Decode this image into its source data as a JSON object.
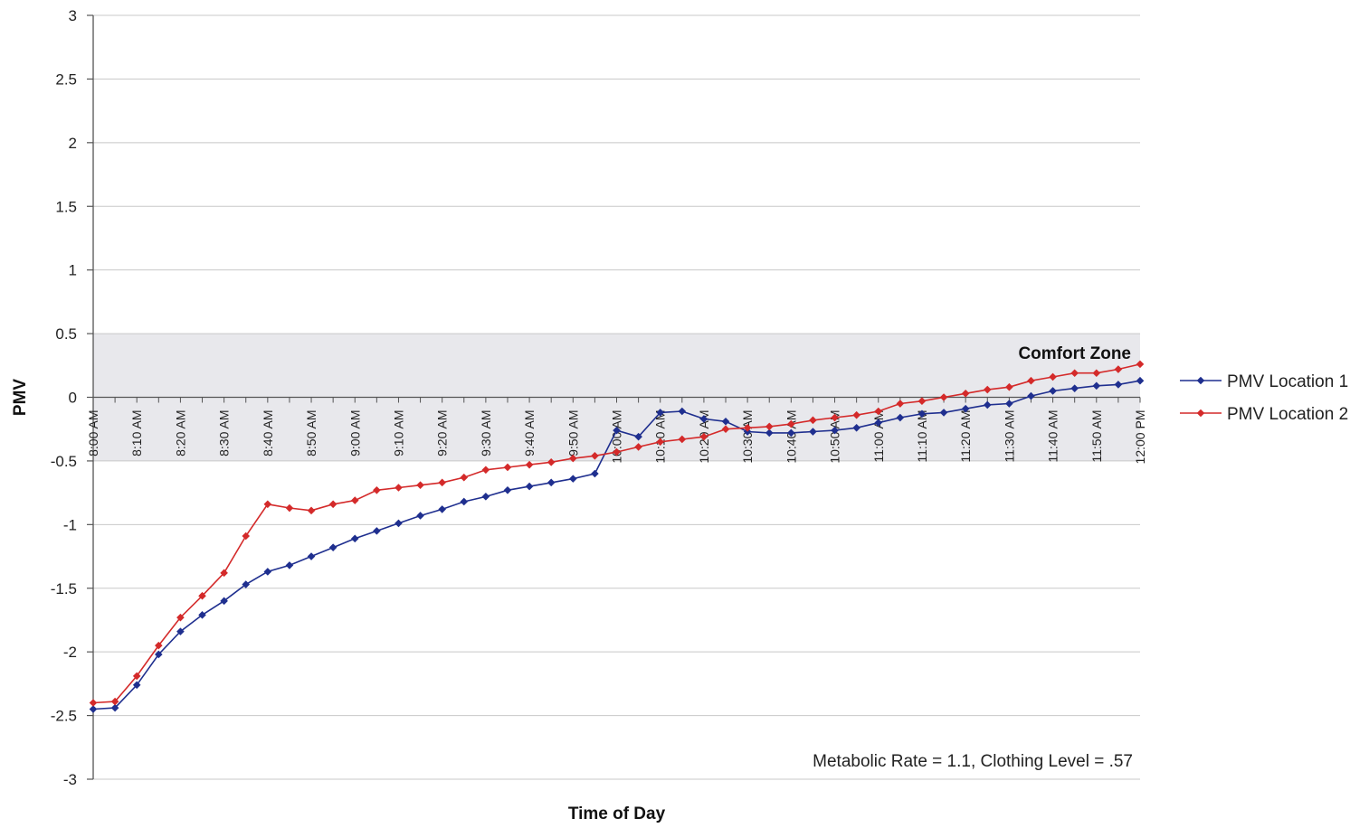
{
  "chart_data": {
    "type": "line",
    "title": "",
    "xlabel": "Time of Day",
    "ylabel": "PMV",
    "ylim": [
      -3,
      3
    ],
    "yticks": [
      "3",
      "2.5",
      "2",
      "1.5",
      "1",
      "0.5",
      "0",
      "-0.5",
      "-1",
      "-1.5",
      "-2",
      "-2.5",
      "-3"
    ],
    "x_tick_labels": [
      "8:00 AM",
      "8:10 AM",
      "8:20 AM",
      "8:30 AM",
      "8:40 AM",
      "8:50 AM",
      "9:00 AM",
      "9:10 AM",
      "9:20 AM",
      "9:30 AM",
      "9:40 AM",
      "9:50 AM",
      "10:00 AM",
      "10:10 AM",
      "10:20 AM",
      "10:30 AM",
      "10:40 AM",
      "10:50 AM",
      "11:00 AM",
      "11:10 AM",
      "11:20 AM",
      "11:30 AM",
      "11:40 AM",
      "11:50 AM",
      "12:00 PM"
    ],
    "x": [
      "8:00 AM",
      "8:05 AM",
      "8:10 AM",
      "8:15 AM",
      "8:20 AM",
      "8:25 AM",
      "8:30 AM",
      "8:35 AM",
      "8:40 AM",
      "8:45 AM",
      "8:50 AM",
      "8:55 AM",
      "9:00 AM",
      "9:05 AM",
      "9:10 AM",
      "9:15 AM",
      "9:20 AM",
      "9:25 AM",
      "9:30 AM",
      "9:35 AM",
      "9:40 AM",
      "9:45 AM",
      "9:50 AM",
      "9:55 AM",
      "10:00 AM",
      "10:05 AM",
      "10:10 AM",
      "10:15 AM",
      "10:20 AM",
      "10:25 AM",
      "10:30 AM",
      "10:35 AM",
      "10:40 AM",
      "10:45 AM",
      "10:50 AM",
      "10:55 AM",
      "11:00 AM",
      "11:05 AM",
      "11:10 AM",
      "11:15 AM",
      "11:20 AM",
      "11:25 AM",
      "11:30 AM",
      "11:35 AM",
      "11:40 AM",
      "11:45 AM",
      "11:50 AM",
      "11:55 AM",
      "12:00 PM"
    ],
    "series": [
      {
        "name": "PMV Location 1",
        "color": "#1f2f8f",
        "values": [
          -2.45,
          -2.44,
          -2.26,
          -2.02,
          -1.84,
          -1.71,
          -1.6,
          -1.47,
          -1.37,
          -1.32,
          -1.25,
          -1.18,
          -1.11,
          -1.05,
          -0.99,
          -0.93,
          -0.88,
          -0.82,
          -0.78,
          -0.73,
          -0.7,
          -0.67,
          -0.64,
          -0.6,
          -0.26,
          -0.31,
          -0.12,
          -0.11,
          -0.17,
          -0.19,
          -0.27,
          -0.28,
          -0.28,
          -0.27,
          -0.26,
          -0.24,
          -0.2,
          -0.16,
          -0.13,
          -0.12,
          -0.09,
          -0.06,
          -0.05,
          0.01,
          0.05,
          0.07,
          0.09,
          0.1,
          0.13
        ]
      },
      {
        "name": "PMV Location 2",
        "color": "#d42a2a",
        "values": [
          -2.4,
          -2.39,
          -2.19,
          -1.95,
          -1.73,
          -1.56,
          -1.38,
          -1.09,
          -0.84,
          -0.87,
          -0.89,
          -0.84,
          -0.81,
          -0.73,
          -0.71,
          -0.69,
          -0.67,
          -0.63,
          -0.57,
          -0.55,
          -0.53,
          -0.51,
          -0.48,
          -0.46,
          -0.43,
          -0.39,
          -0.35,
          -0.33,
          -0.31,
          -0.25,
          -0.24,
          -0.23,
          -0.21,
          -0.18,
          -0.16,
          -0.14,
          -0.11,
          -0.05,
          -0.03,
          0.0,
          0.03,
          0.06,
          0.08,
          0.13,
          0.16,
          0.19,
          0.19,
          0.22,
          0.26
        ]
      }
    ],
    "shaded_band": {
      "label": "Comfort Zone",
      "range": [
        -0.5,
        0.5
      ],
      "color": "#e8e8ec"
    },
    "annotation": "Metabolic Rate = 1.1, Clothing Level = .57",
    "legend_position": "right",
    "grid": true
  }
}
